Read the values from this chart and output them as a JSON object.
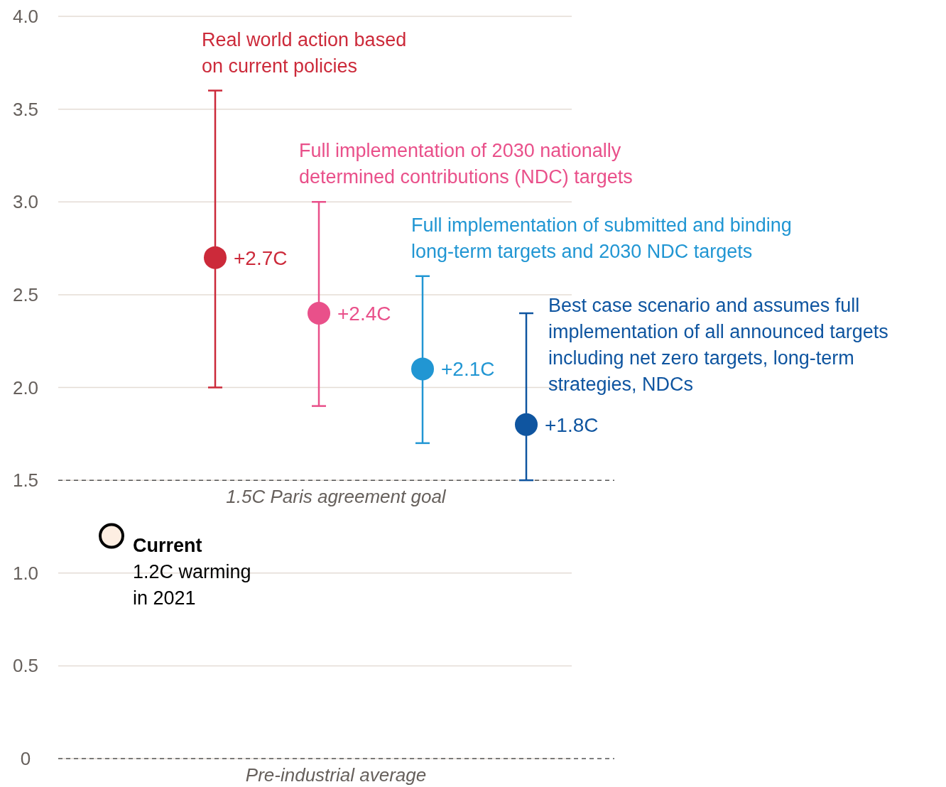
{
  "chart_data": {
    "type": "scatter",
    "categories": [
      null,
      null,
      null,
      null,
      null
    ],
    "values": [
      1.2,
      2.7,
      2.4,
      2.1,
      1.8
    ],
    "colors": [
      "#fdeee2",
      "#cc2a3a",
      "#e9508a",
      "#2196d3",
      "#0f55a0"
    ],
    "errors": [
      null,
      [
        2.0,
        3.6
      ],
      [
        1.9,
        3.0
      ],
      [
        1.7,
        2.6
      ],
      [
        1.5,
        2.4
      ]
    ],
    "value_labels": [
      null,
      "+2.7C",
      "+2.4C",
      "+2.1C",
      "+1.8C"
    ],
    "ylim": [
      0,
      4
    ],
    "yticks": [
      0,
      {
        "value": 0.5,
        "label": "0.5"
      },
      {
        "value": 1,
        "label": "1.0"
      },
      {
        "value": 1.5,
        "label": "1.5"
      },
      {
        "value": 2,
        "label": "2.0"
      },
      {
        "value": 2.5,
        "label": "2.5"
      },
      {
        "value": 3,
        "label": "3.0"
      },
      {
        "value": 3.5,
        "label": "3.5"
      },
      {
        "value": 4,
        "label": "4.0"
      }
    ],
    "tick_labels": "y",
    "grid": "y",
    "marker": "circle",
    "ref_lines": [
      {
        "axis": "y",
        "value": 1.5,
        "label": "1.5C Paris agreement goal",
        "line_style": "dashed"
      },
      {
        "axis": "y",
        "value": 0,
        "label": "Pre-industrial average",
        "line_style": "dashed"
      }
    ],
    "annotations": [
      "Current\n1.2C warming\nin 2021",
      "Real world action based\non current policies",
      "Full implementation of 2030 nationally\ndetermined contributions (NDC) targets",
      "Full implementation of submitted and binding\nlong-term targets and 2030 NDC targets",
      "Best case scenario and assumes full\nimplementation of all announced targets\nincluding net zero targets, long-term\nstrategies, NDCs"
    ]
  }
}
